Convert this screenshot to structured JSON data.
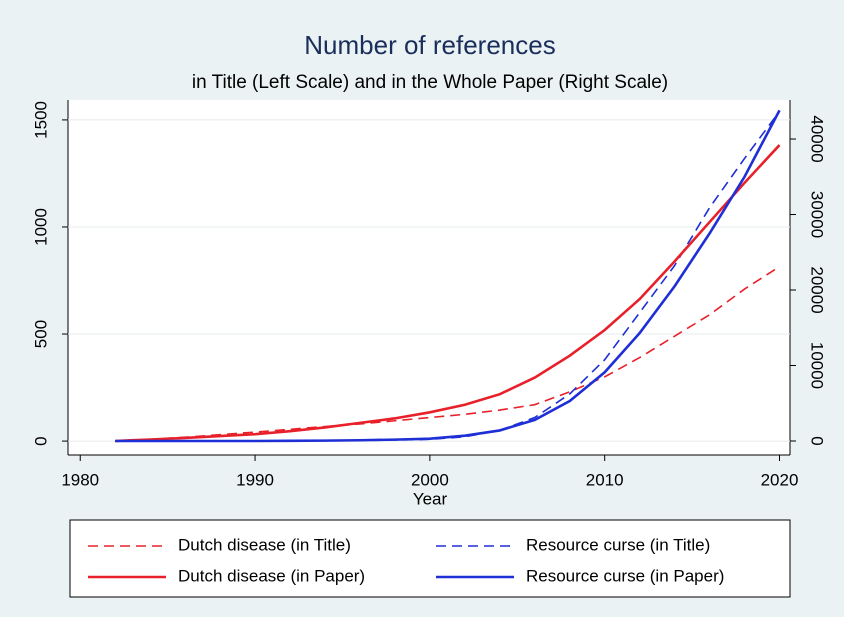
{
  "chart_data": {
    "type": "line",
    "title": "Number of references",
    "subtitle": "in Title (Left Scale) and in the Whole Paper (Right Scale)",
    "xlabel": "Year",
    "x": [
      1982,
      1984,
      1986,
      1988,
      1990,
      1992,
      1994,
      1996,
      1998,
      2000,
      2002,
      2004,
      2006,
      2008,
      2010,
      2012,
      2014,
      2016,
      2018,
      2020
    ],
    "series": [
      {
        "name": "Dutch disease (in Title)",
        "color": "#e8202a",
        "style": "dashed",
        "axis": "y",
        "values": [
          0,
          8,
          18,
          30,
          42,
          55,
          68,
          80,
          95,
          110,
          125,
          145,
          170,
          230,
          300,
          390,
          490,
          590,
          710,
          815
        ]
      },
      {
        "name": "Resource curse (in Title)",
        "color": "#1f2fd6",
        "style": "dashed",
        "axis": "y",
        "values": [
          0,
          0,
          0,
          1,
          1,
          2,
          2,
          3,
          5,
          8,
          20,
          50,
          110,
          220,
          380,
          600,
          820,
          1090,
          1320,
          1540
        ]
      },
      {
        "name": "Dutch disease (in Paper)",
        "color": "#e8202a",
        "style": "solid",
        "axis": "y2",
        "values": [
          0,
          200,
          400,
          650,
          900,
          1300,
          1800,
          2400,
          3000,
          3800,
          4800,
          6200,
          8400,
          11300,
          14700,
          18800,
          23800,
          29000,
          34200,
          39200
        ]
      },
      {
        "name": "Resource curse (in Paper)",
        "color": "#1f2fd6",
        "style": "solid",
        "axis": "y2",
        "values": [
          0,
          0,
          0,
          0,
          0,
          20,
          50,
          100,
          180,
          300,
          700,
          1400,
          2800,
          5300,
          9100,
          14300,
          20500,
          27500,
          35000,
          43800
        ]
      }
    ],
    "xlim": [
      1979.3,
      2020.6
    ],
    "xticks": [
      1980,
      1990,
      2000,
      2010,
      2020
    ],
    "ylim": [
      -65,
      1593
    ],
    "yticks": [
      0,
      500,
      1000,
      1500
    ],
    "y2lim": [
      -1855,
      45170
    ],
    "y2ticks": [
      0,
      10000,
      20000,
      30000,
      40000
    ],
    "grid": true,
    "legend": "bottom"
  }
}
